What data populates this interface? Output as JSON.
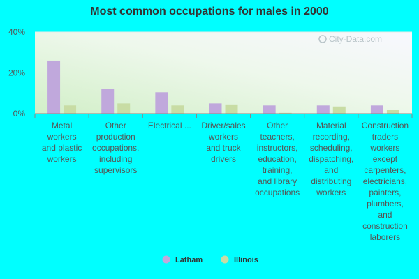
{
  "chart_data": {
    "type": "bar",
    "title": "Most common occupations for males in 2000",
    "xlabel": "",
    "ylabel": "",
    "ylim": [
      0,
      40
    ],
    "y_ticks": [
      "0%",
      "20%",
      "40%"
    ],
    "y_tick_values": [
      0,
      20,
      40
    ],
    "categories": [
      [
        "Metal",
        "workers",
        "and plastic",
        "workers"
      ],
      [
        "Other",
        "production",
        "occupations,",
        "including",
        "supervisors"
      ],
      [
        "Electrical ..."
      ],
      [
        "Driver/sales",
        "workers",
        "and truck",
        "drivers"
      ],
      [
        "Other",
        "teachers,",
        "instructors,",
        "education,",
        "training,",
        "and library",
        "occupations"
      ],
      [
        "Material",
        "recording,",
        "scheduling,",
        "dispatching,",
        "and",
        "distributing",
        "workers"
      ],
      [
        "Construction",
        "traders",
        "workers",
        "except",
        "carpenters,",
        "electricians,",
        "painters,",
        "plumbers,",
        "and",
        "construction",
        "laborers"
      ]
    ],
    "series": [
      {
        "name": "Latham",
        "color": "#c0a8dc",
        "values": [
          26,
          12,
          10.5,
          5,
          4,
          4,
          4
        ]
      },
      {
        "name": "Illinois",
        "color": "#c8dca4",
        "values": [
          4,
          5,
          4,
          4.5,
          0.4,
          3.5,
          2
        ]
      }
    ],
    "grid": true,
    "legend_position": "bottom"
  },
  "watermark": "City-Data.com"
}
